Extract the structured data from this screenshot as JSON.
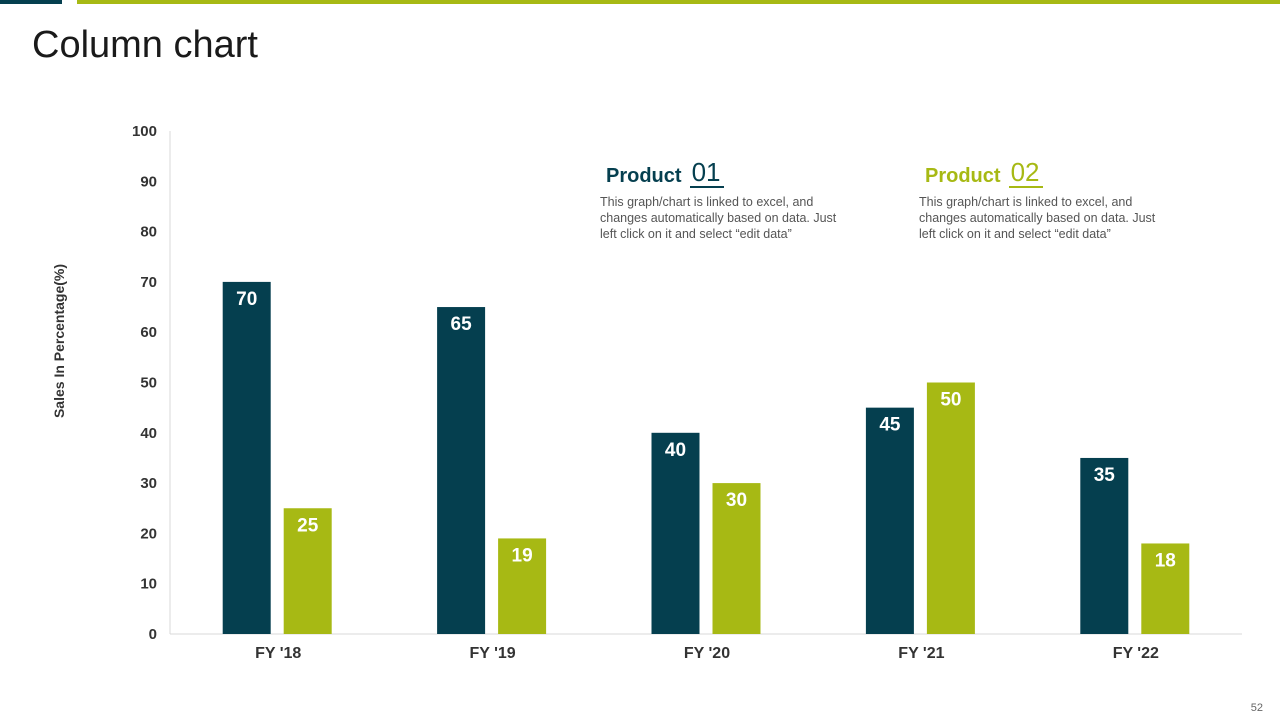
{
  "slide": {
    "title": "Column chart",
    "page_number": "52"
  },
  "legend": [
    {
      "label": "Product",
      "number": "01",
      "description": "This graph/chart is linked to excel, and changes automatically based on data. Just left click on it and select “edit data”",
      "color": "#053f4f"
    },
    {
      "label": "Product",
      "number": "02",
      "description": "This graph/chart is linked to excel, and changes automatically based on data. Just left click on it and select “edit data”",
      "color": "#a7b914"
    }
  ],
  "colors": {
    "accent_dark": "#053f4f",
    "accent_green": "#a7b914"
  },
  "chart_data": {
    "type": "bar",
    "title": "",
    "xlabel": "",
    "ylabel": "Sales In Percentage(%)",
    "categories": [
      "FY '18",
      "FY '19",
      "FY '20",
      "FY '21",
      "FY '22"
    ],
    "ylim": [
      0,
      100
    ],
    "yticks": [
      0,
      10,
      20,
      30,
      40,
      50,
      60,
      70,
      80,
      90,
      100
    ],
    "grid": false,
    "series": [
      {
        "name": "Product 01",
        "color": "#053f4f",
        "values": [
          70,
          65,
          40,
          45,
          35
        ]
      },
      {
        "name": "Product 02",
        "color": "#a7b914",
        "values": [
          25,
          19,
          30,
          50,
          18
        ]
      }
    ]
  }
}
